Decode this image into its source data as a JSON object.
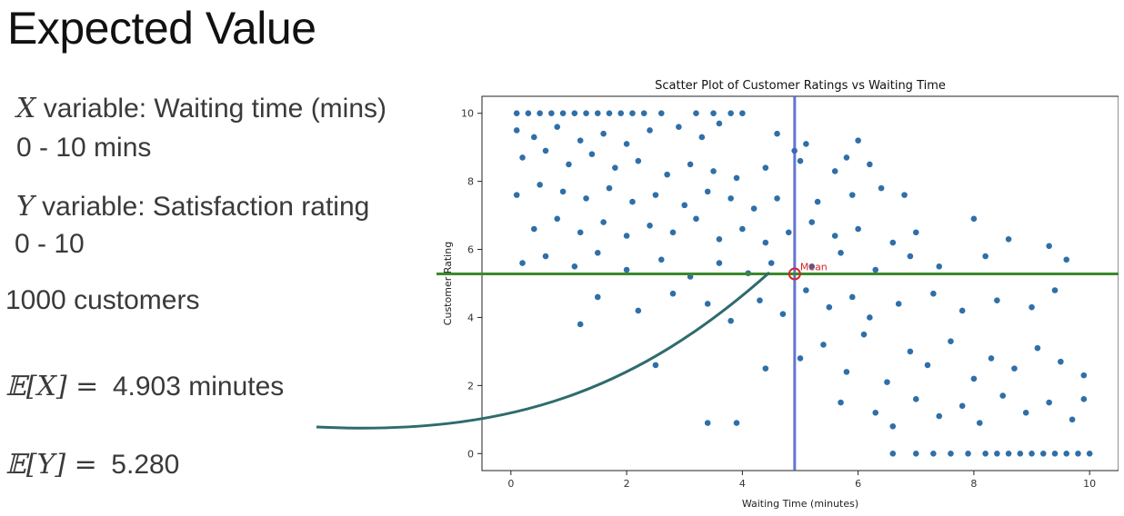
{
  "slide": {
    "title": "Expected Value",
    "x_var_symbol": "X",
    "x_var_text": " variable: Waiting time (mins)",
    "x_range": "0 - 10 mins",
    "y_var_symbol": "Y",
    "y_var_text": " variable: Satisfaction rating",
    "y_range": "0 - 10",
    "customers": "1000 customers",
    "ex_lhs": "𝔼[X] = ",
    "ex_value": "4.903 minutes",
    "ey_lhs": "𝔼[Y] = ",
    "ey_value": "5.280"
  },
  "colors": {
    "points": "#2f6fa8",
    "mean_x_line": "#4a5fc8",
    "mean_y_line": "#3a8a2a",
    "mean_marker": "#d62728",
    "arrow": "#2e6b6e"
  },
  "chart_data": {
    "type": "scatter",
    "title": "Scatter Plot of Customer Ratings vs Waiting Time",
    "xlabel": "Waiting Time (minutes)",
    "ylabel": "Customer Rating",
    "xlim": [
      -0.5,
      10.5
    ],
    "ylim": [
      -0.5,
      10.5
    ],
    "xticks": [
      "0",
      "2",
      "4",
      "6",
      "8",
      "10"
    ],
    "yticks": [
      "0",
      "2",
      "4",
      "6",
      "8",
      "10"
    ],
    "mean_x": 4.903,
    "mean_y": 5.28,
    "mean_label": "Mean",
    "grid": false,
    "points": [
      [
        0.1,
        10
      ],
      [
        0.3,
        10
      ],
      [
        0.5,
        10
      ],
      [
        0.7,
        10
      ],
      [
        0.9,
        10
      ],
      [
        1.1,
        10
      ],
      [
        1.3,
        10
      ],
      [
        1.5,
        10
      ],
      [
        1.7,
        10
      ],
      [
        1.9,
        10
      ],
      [
        2.1,
        10
      ],
      [
        2.3,
        10
      ],
      [
        2.6,
        10
      ],
      [
        3.2,
        10
      ],
      [
        3.5,
        10
      ],
      [
        3.8,
        10
      ],
      [
        4.0,
        10
      ],
      [
        0.1,
        9.5
      ],
      [
        0.4,
        9.3
      ],
      [
        0.8,
        9.6
      ],
      [
        1.2,
        9.2
      ],
      [
        1.6,
        9.4
      ],
      [
        2.0,
        9.1
      ],
      [
        2.4,
        9.5
      ],
      [
        2.9,
        9.6
      ],
      [
        3.3,
        9.3
      ],
      [
        3.6,
        9.7
      ],
      [
        4.6,
        9.4
      ],
      [
        4.9,
        8.9
      ],
      [
        5.1,
        9.1
      ],
      [
        6.0,
        9.2
      ],
      [
        0.2,
        8.7
      ],
      [
        0.6,
        8.9
      ],
      [
        1.0,
        8.5
      ],
      [
        1.4,
        8.8
      ],
      [
        1.8,
        8.4
      ],
      [
        2.2,
        8.6
      ],
      [
        2.7,
        8.2
      ],
      [
        3.1,
        8.5
      ],
      [
        3.5,
        8.3
      ],
      [
        3.9,
        8.1
      ],
      [
        4.4,
        8.4
      ],
      [
        5.0,
        8.6
      ],
      [
        5.6,
        8.3
      ],
      [
        5.8,
        8.7
      ],
      [
        6.2,
        8.5
      ],
      [
        0.1,
        7.6
      ],
      [
        0.5,
        7.9
      ],
      [
        0.9,
        7.7
      ],
      [
        1.3,
        7.5
      ],
      [
        1.7,
        7.8
      ],
      [
        2.1,
        7.4
      ],
      [
        2.5,
        7.6
      ],
      [
        3.0,
        7.3
      ],
      [
        3.4,
        7.7
      ],
      [
        3.8,
        7.5
      ],
      [
        4.2,
        7.2
      ],
      [
        4.6,
        7.5
      ],
      [
        5.3,
        7.4
      ],
      [
        5.9,
        7.6
      ],
      [
        6.4,
        7.8
      ],
      [
        6.8,
        7.6
      ],
      [
        0.4,
        6.6
      ],
      [
        0.8,
        6.9
      ],
      [
        1.2,
        6.5
      ],
      [
        1.6,
        6.8
      ],
      [
        2.0,
        6.4
      ],
      [
        2.4,
        6.7
      ],
      [
        2.8,
        6.5
      ],
      [
        3.2,
        6.9
      ],
      [
        3.6,
        6.3
      ],
      [
        4.0,
        6.6
      ],
      [
        4.4,
        6.2
      ],
      [
        4.8,
        6.5
      ],
      [
        5.2,
        6.8
      ],
      [
        5.6,
        6.4
      ],
      [
        6.0,
        6.6
      ],
      [
        6.6,
        6.2
      ],
      [
        7.0,
        6.5
      ],
      [
        8.0,
        6.9
      ],
      [
        8.6,
        6.3
      ],
      [
        9.3,
        6.1
      ],
      [
        0.2,
        5.6
      ],
      [
        0.6,
        5.8
      ],
      [
        1.1,
        5.5
      ],
      [
        1.5,
        5.9
      ],
      [
        2.0,
        5.4
      ],
      [
        2.6,
        5.7
      ],
      [
        3.1,
        5.2
      ],
      [
        3.6,
        5.6
      ],
      [
        4.1,
        5.3
      ],
      [
        4.5,
        5.6
      ],
      [
        5.2,
        5.5
      ],
      [
        5.7,
        5.9
      ],
      [
        6.3,
        5.4
      ],
      [
        6.9,
        5.8
      ],
      [
        7.4,
        5.5
      ],
      [
        8.2,
        5.8
      ],
      [
        9.6,
        5.7
      ],
      [
        1.2,
        3.8
      ],
      [
        1.5,
        4.6
      ],
      [
        2.2,
        4.2
      ],
      [
        2.8,
        4.7
      ],
      [
        3.4,
        4.4
      ],
      [
        3.8,
        3.9
      ],
      [
        4.3,
        4.5
      ],
      [
        4.7,
        4.1
      ],
      [
        5.1,
        4.8
      ],
      [
        5.5,
        4.3
      ],
      [
        5.9,
        4.6
      ],
      [
        6.2,
        4.0
      ],
      [
        6.7,
        4.4
      ],
      [
        7.3,
        4.7
      ],
      [
        7.8,
        4.2
      ],
      [
        8.4,
        4.5
      ],
      [
        9.0,
        4.3
      ],
      [
        9.4,
        4.8
      ],
      [
        2.5,
        2.6
      ],
      [
        3.4,
        0.9
      ],
      [
        3.9,
        0.9
      ],
      [
        4.4,
        2.5
      ],
      [
        5.0,
        2.8
      ],
      [
        5.4,
        3.2
      ],
      [
        5.8,
        2.4
      ],
      [
        6.1,
        3.5
      ],
      [
        6.5,
        2.1
      ],
      [
        6.9,
        3.0
      ],
      [
        7.2,
        2.6
      ],
      [
        7.6,
        3.3
      ],
      [
        8.0,
        2.2
      ],
      [
        8.3,
        2.8
      ],
      [
        8.7,
        2.5
      ],
      [
        9.1,
        3.1
      ],
      [
        9.5,
        2.7
      ],
      [
        9.9,
        2.3
      ],
      [
        5.7,
        1.5
      ],
      [
        6.3,
        1.2
      ],
      [
        6.6,
        0.8
      ],
      [
        7.0,
        1.6
      ],
      [
        7.4,
        1.1
      ],
      [
        7.8,
        1.4
      ],
      [
        8.1,
        0.9
      ],
      [
        8.5,
        1.7
      ],
      [
        8.9,
        1.2
      ],
      [
        9.3,
        1.5
      ],
      [
        9.7,
        1.0
      ],
      [
        9.9,
        1.6
      ],
      [
        6.6,
        0
      ],
      [
        7.0,
        0
      ],
      [
        7.3,
        0
      ],
      [
        7.6,
        0
      ],
      [
        7.9,
        0
      ],
      [
        8.2,
        0
      ],
      [
        8.4,
        0
      ],
      [
        8.6,
        0
      ],
      [
        8.8,
        0
      ],
      [
        9.0,
        0
      ],
      [
        9.2,
        0
      ],
      [
        9.4,
        0
      ],
      [
        9.6,
        0
      ],
      [
        9.8,
        0
      ],
      [
        10.0,
        0
      ]
    ]
  }
}
